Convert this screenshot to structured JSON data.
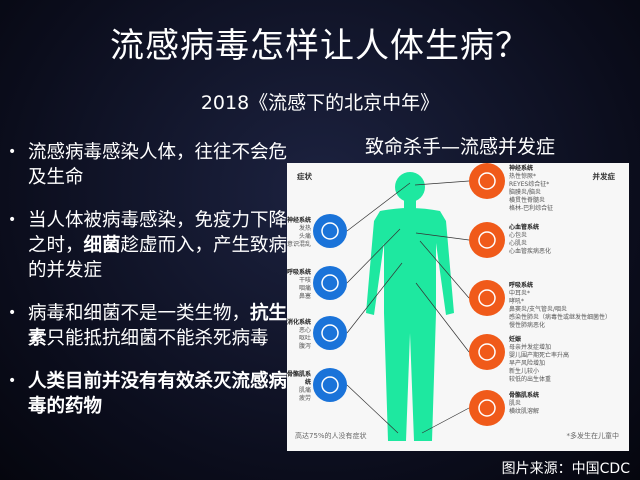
{
  "title": "流感病毒怎样让人体生病？",
  "subtitle": "2018《流感下的北京中年》",
  "bullets": [
    {
      "parts": [
        {
          "text": "流感病毒感染人体，往往不会危及生命",
          "bold": false
        }
      ]
    },
    {
      "parts": [
        {
          "text": "当人体被病毒感染，免疫力下降之时，",
          "bold": false
        },
        {
          "text": "细菌",
          "bold": true
        },
        {
          "text": "趁虚而入，产生致病的并发症",
          "bold": false
        }
      ]
    },
    {
      "parts": [
        {
          "text": "病毒和细菌不是一类生物，",
          "bold": false
        },
        {
          "text": "抗生素",
          "bold": true
        },
        {
          "text": "只能抵抗细菌不能杀死病毒",
          "bold": false
        }
      ]
    },
    {
      "parts": [
        {
          "text": "人类目前并没有有效杀灭流感病毒的药物",
          "bold": true
        }
      ]
    }
  ],
  "infographic": {
    "title": "致命杀手—流感并发症",
    "left_header": "症状",
    "right_header": "并发症",
    "symptoms": [
      {
        "system": "神经系统",
        "items": [
          "发热",
          "头痛",
          "意识混乱"
        ],
        "icon": "brain-icon"
      },
      {
        "system": "呼吸系统",
        "items": [
          "干咳",
          "咽痛",
          "鼻塞"
        ],
        "icon": "lungs-icon"
      },
      {
        "system": "消化系统",
        "items": [
          "恶心",
          "呕吐",
          "腹泻"
        ],
        "icon": "stomach-icon"
      },
      {
        "system": "骨骼肌系统",
        "items": [
          "肌痛",
          "疲劳"
        ],
        "icon": "foot-icon"
      }
    ],
    "complications": [
      {
        "system": "神经系统",
        "items": [
          "热性惊厥*",
          "REYES综合征*",
          "脑膜炎/脑炎",
          "横贯性脊髓炎",
          "格林-巴利综合征"
        ],
        "icon": "brain-icon"
      },
      {
        "system": "心血管系统",
        "items": [
          "心包炎",
          "心肌炎",
          "心血管疾病恶化"
        ],
        "icon": "heart-icon"
      },
      {
        "system": "呼吸系统",
        "items": [
          "中耳炎*",
          "哮吼*",
          "鼻窦炎/支气管炎/咽炎",
          "感染性肺炎（病毒性或继发性细菌性）",
          "慢性肺病恶化"
        ],
        "icon": "lungs-icon"
      },
      {
        "system": "妊娠",
        "items": [
          "母亲并发症增加",
          "婴儿围产期死亡率升高",
          "早产风险增加",
          "新生儿较小",
          "较低的出生体重"
        ],
        "icon": "fetus-icon"
      },
      {
        "system": "骨骼肌系统",
        "items": [
          "肌炎",
          "横纹肌溶解"
        ],
        "icon": "foot-icon"
      }
    ],
    "left_footnote": "高达75%的人没有症状",
    "right_footnote": "*多发生在儿童中",
    "colors": {
      "symptom": "#1a73d9",
      "complication": "#f05a1a",
      "body": "#1ee8a0"
    }
  },
  "credit": "图片来源：中国CDC"
}
